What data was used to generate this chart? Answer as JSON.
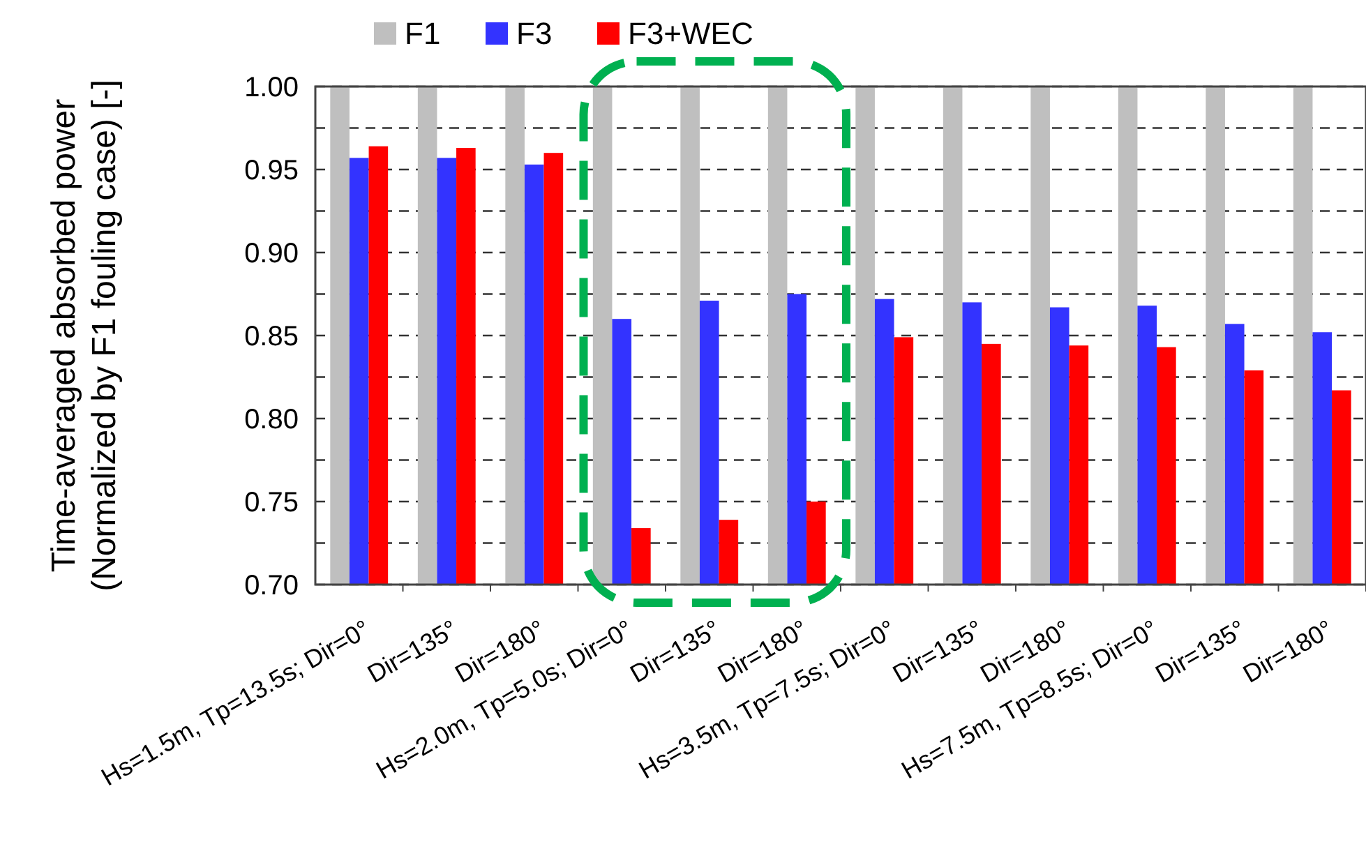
{
  "chart_data": {
    "type": "bar",
    "ylabel": "Time-averaged absorbed power\n(Normalized by F1 fouling case) [-]",
    "categories": [
      "Hs=1.5m, Tp=13.5s; Dir=0°",
      "Dir=135°",
      "Dir=180°",
      "Hs=2.0m, Tp=5.0s; Dir=0°",
      "Dir=135°",
      "Dir=180°",
      "Hs=3.5m, Tp=7.5s; Dir=0°",
      "Dir=135°",
      "Dir=180°",
      "Hs=7.5m, Tp=8.5s; Dir=0°",
      "Dir=135°",
      "Dir=180°"
    ],
    "series": [
      {
        "name": "F1",
        "color": "#bfbfbf",
        "values": [
          1,
          1,
          1,
          1,
          1,
          1,
          1,
          1,
          1,
          1,
          1,
          1
        ]
      },
      {
        "name": "F3",
        "color": "#3333ff",
        "values": [
          0.957,
          0.957,
          0.953,
          0.86,
          0.871,
          0.875,
          0.872,
          0.87,
          0.867,
          0.868,
          0.857,
          0.852
        ]
      },
      {
        "name": "F3+WEC",
        "color": "#ff0000",
        "values": [
          0.964,
          0.963,
          0.96,
          0.734,
          0.739,
          0.75,
          0.849,
          0.845,
          0.844,
          0.843,
          0.829,
          0.817
        ]
      }
    ],
    "ylim": [
      0.7,
      1.0
    ],
    "yticks": [
      {
        "value": 0.7,
        "label": "0.70"
      },
      {
        "value": 0.725,
        "label": null
      },
      {
        "value": 0.75,
        "label": "0.75"
      },
      {
        "value": 0.775,
        "label": null
      },
      {
        "value": 0.8,
        "label": "0.80"
      },
      {
        "value": 0.825,
        "label": null
      },
      {
        "value": 0.85,
        "label": "0.85"
      },
      {
        "value": 0.875,
        "label": null
      },
      {
        "value": 0.9,
        "label": "0.90"
      },
      {
        "value": 0.925,
        "label": null
      },
      {
        "value": 0.95,
        "label": "0.95"
      },
      {
        "value": 0.975,
        "label": null
      },
      {
        "value": 1.0,
        "label": "1.00"
      }
    ],
    "grid": "y",
    "legend": "top"
  }
}
